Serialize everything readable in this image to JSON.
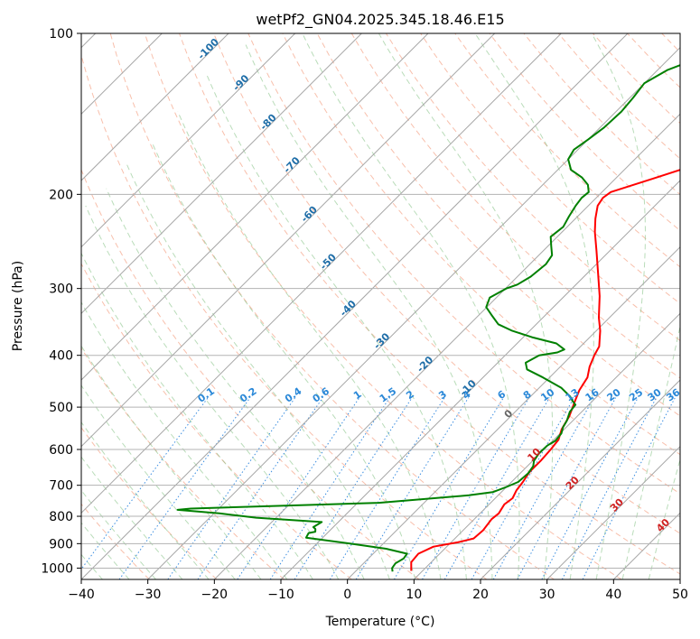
{
  "chart_data": {
    "type": "line",
    "title": "wetPf2_GN04.2025.345.18.46.E15",
    "xlabel": "Temperature (°C)",
    "ylabel": "Pressure (hPa)",
    "xlim": [
      -40,
      50
    ],
    "ylim": [
      1050,
      100
    ],
    "y_scale": "log",
    "skew_deg": 45,
    "grid": true,
    "x_ticks": [
      -40,
      -30,
      -20,
      -10,
      0,
      10,
      20,
      30,
      40,
      50
    ],
    "x_tick_labels": [
      "−40",
      "−30",
      "−20",
      "−10",
      "0",
      "10",
      "20",
      "30",
      "40",
      "50"
    ],
    "y_ticks": [
      1000,
      900,
      800,
      700,
      600,
      500,
      400,
      300,
      200,
      100
    ],
    "y_tick_labels": [
      "1000",
      "900",
      "800",
      "700",
      "600",
      "500",
      "400",
      "300",
      "200",
      "100"
    ],
    "series": [
      {
        "color": "#ff0000",
        "points": [
          [
            8.3,
            1012
          ],
          [
            7.0,
            975
          ],
          [
            6.8,
            940
          ],
          [
            8.0,
            912
          ],
          [
            11.0,
            895
          ],
          [
            12.8,
            880
          ],
          [
            13.0,
            850
          ],
          [
            12.6,
            810
          ],
          [
            12.8,
            790
          ],
          [
            12.3,
            760
          ],
          [
            12.6,
            740
          ],
          [
            12.0,
            715
          ],
          [
            11.7,
            690
          ],
          [
            11.2,
            660
          ],
          [
            11.2,
            630
          ],
          [
            11.0,
            600
          ],
          [
            10.7,
            575
          ],
          [
            9.6,
            550
          ],
          [
            8.8,
            520
          ],
          [
            7.5,
            490
          ],
          [
            6.4,
            465
          ],
          [
            5.7,
            440
          ],
          [
            4.4,
            420
          ],
          [
            3.4,
            400
          ],
          [
            2.8,
            385
          ],
          [
            0.6,
            360
          ],
          [
            -1.6,
            340
          ],
          [
            -4.7,
            310
          ],
          [
            -8.5,
            280
          ],
          [
            -12.0,
            255
          ],
          [
            -15.1,
            235
          ],
          [
            -17.0,
            222
          ],
          [
            -18.6,
            210
          ],
          [
            -19.0,
            203
          ],
          [
            -18.7,
            198
          ],
          [
            -14.4,
            187
          ],
          [
            -9.6,
            175
          ],
          [
            -6.7,
            165
          ],
          [
            -5.4,
            157
          ],
          [
            -4.1,
            148
          ],
          [
            -4.0,
            140
          ],
          [
            -5.3,
            132
          ],
          [
            -8.3,
            120
          ],
          [
            -9.2,
            112
          ],
          [
            -10.0,
            106
          ],
          [
            -10.3,
            100
          ]
        ]
      },
      {
        "color": "#008000",
        "points": [
          [
            5.6,
            1015
          ],
          [
            5.0,
            1000
          ],
          [
            4.8,
            980
          ],
          [
            5.3,
            960
          ],
          [
            5.1,
            940
          ],
          [
            1.2,
            920
          ],
          [
            -5.0,
            900
          ],
          [
            -12.5,
            877
          ],
          [
            -12.8,
            860
          ],
          [
            -12.0,
            855
          ],
          [
            -12.4,
            845
          ],
          [
            -13.0,
            838
          ],
          [
            -12.5,
            820
          ],
          [
            -23.0,
            805
          ],
          [
            -29.2,
            790
          ],
          [
            -36.0,
            778
          ],
          [
            -34.2,
            774
          ],
          [
            -6.8,
            755
          ],
          [
            5.6,
            731
          ],
          [
            8.7,
            721
          ],
          [
            10.0,
            705
          ],
          [
            11.0,
            690
          ],
          [
            11.2,
            665
          ],
          [
            10.9,
            645
          ],
          [
            10.2,
            630
          ],
          [
            9.8,
            610
          ],
          [
            9.9,
            590
          ],
          [
            10.4,
            578
          ],
          [
            10.2,
            560
          ],
          [
            9.5,
            545
          ],
          [
            9.1,
            530
          ],
          [
            8.2,
            510
          ],
          [
            8.0,
            495
          ],
          [
            7.0,
            487
          ],
          [
            6.0,
            478
          ],
          [
            3.3,
            460
          ],
          [
            -1.0,
            440
          ],
          [
            -4.6,
            425
          ],
          [
            -5.8,
            413
          ],
          [
            -4.9,
            400
          ],
          [
            -2.6,
            395
          ],
          [
            -2.0,
            390
          ],
          [
            -4.1,
            380
          ],
          [
            -8.7,
            370
          ],
          [
            -12.6,
            360
          ],
          [
            -15.7,
            350
          ],
          [
            -17.8,
            338
          ],
          [
            -20.1,
            325
          ],
          [
            -21.0,
            312
          ],
          [
            -19.9,
            300
          ],
          [
            -18.8,
            295
          ],
          [
            -18.0,
            285
          ],
          [
            -17.6,
            270
          ],
          [
            -18.0,
            260
          ],
          [
            -19.5,
            250
          ],
          [
            -21.0,
            240
          ],
          [
            -20.6,
            230
          ],
          [
            -21.3,
            220
          ],
          [
            -21.9,
            210
          ],
          [
            -22.2,
            203
          ],
          [
            -22.0,
            198
          ],
          [
            -23.2,
            192
          ],
          [
            -25.2,
            186
          ],
          [
            -28.0,
            180
          ],
          [
            -30.0,
            172
          ],
          [
            -30.6,
            165
          ],
          [
            -30.0,
            158
          ],
          [
            -29.4,
            150
          ],
          [
            -29.2,
            140
          ],
          [
            -29.5,
            132
          ],
          [
            -30.0,
            124
          ],
          [
            -28.5,
            117
          ],
          [
            -26.0,
            112
          ],
          [
            -23.3,
            106
          ],
          [
            -21.4,
            100
          ]
        ]
      }
    ],
    "dry_adiabat_labels": [
      "-100",
      "-90",
      "-80",
      "-70",
      "-60",
      "-50",
      "-40",
      "-30",
      "-20",
      "-10"
    ],
    "moist_adiabat_labels": [
      "0",
      "10",
      "20",
      "30",
      "40"
    ],
    "mixing_ratio_labels": [
      "0.1",
      "0.2",
      "0.4",
      "0.6",
      "1",
      "1.5",
      "2",
      "3",
      "4",
      "6",
      "8",
      "10",
      "13",
      "16",
      "20",
      "25",
      "30",
      "36"
    ]
  }
}
